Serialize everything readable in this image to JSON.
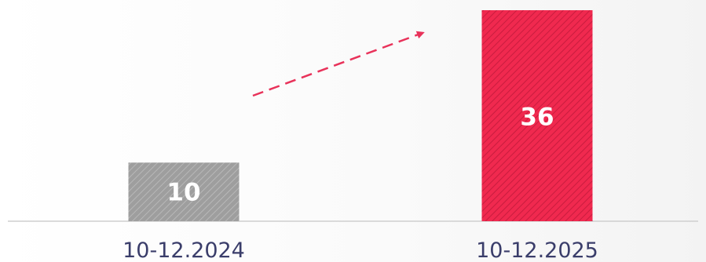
{
  "chart_data": {
    "type": "bar",
    "categories": [
      "10-12.2024",
      "10-12.2025"
    ],
    "values": [
      10,
      36
    ],
    "data_labels": [
      "10",
      "36"
    ],
    "ylim": [
      0,
      36
    ],
    "grid": false,
    "legend": "none",
    "bar_colors": [
      "#9e9e9e",
      "#f0294f"
    ],
    "arrow_color": "#e8325a",
    "label_color": "#3a3d6a",
    "baseline_color": "#cfcfcf"
  }
}
